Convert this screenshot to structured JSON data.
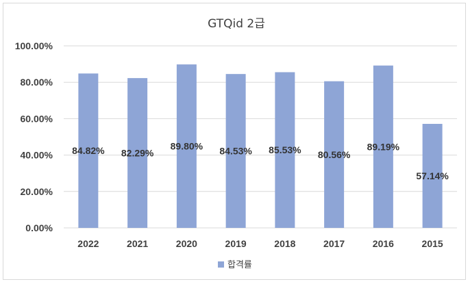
{
  "chart_data": {
    "type": "bar",
    "title": "GTQid 2급",
    "categories": [
      "2022",
      "2021",
      "2020",
      "2019",
      "2018",
      "2017",
      "2016",
      "2015"
    ],
    "series": [
      {
        "name": "합격률",
        "values": [
          84.82,
          82.29,
          89.8,
          84.53,
          85.53,
          80.56,
          89.19,
          57.14
        ],
        "labels": [
          "84.82%",
          "82.29%",
          "89.80%",
          "84.53%",
          "85.53%",
          "80.56%",
          "89.19%",
          "57.14%"
        ],
        "color": "#8EA5D6"
      }
    ],
    "ylim": [
      0,
      100
    ],
    "yticks": [
      "0.00%",
      "20.00%",
      "40.00%",
      "60.00%",
      "80.00%",
      "100.00%"
    ],
    "ytick_values": [
      0,
      20,
      40,
      60,
      80,
      100
    ],
    "xlabel": "",
    "ylabel": "",
    "grid": true,
    "legend": "bottom",
    "colors": {
      "gridline": "#d9d9d9",
      "text": "#404040"
    }
  }
}
